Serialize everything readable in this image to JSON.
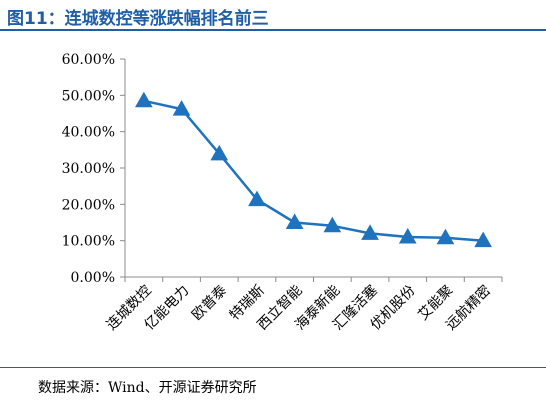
{
  "figure": {
    "title": "图11：连城数控等涨跌幅排名前三",
    "source": "数据来源：Wind、开源证券研究所"
  },
  "chart_data": {
    "type": "line",
    "categories": [
      "连城数控",
      "亿能电力",
      "欧普泰",
      "特瑞斯",
      "西立智能",
      "海泰新能",
      "汇隆活塞",
      "优机股份",
      "艾能聚",
      "远航精密"
    ],
    "values": [
      48.5,
      46.2,
      33.9,
      21.3,
      15.0,
      14.1,
      12.0,
      11.0,
      10.8,
      10.0
    ],
    "series": [
      {
        "values": [
          48.5,
          46.2,
          33.9,
          21.3,
          15.0,
          14.1,
          12.0,
          11.0,
          10.8,
          10.0
        ]
      }
    ],
    "ylim": [
      0,
      60
    ],
    "yticks": [
      "0.00%",
      "10.00%",
      "20.00%",
      "30.00%",
      "40.00%",
      "50.00%",
      "60.00%"
    ],
    "xlabel": "",
    "ylabel": "",
    "grid": false,
    "legend": "none",
    "marker": "triangle",
    "color": "#1f73be"
  }
}
